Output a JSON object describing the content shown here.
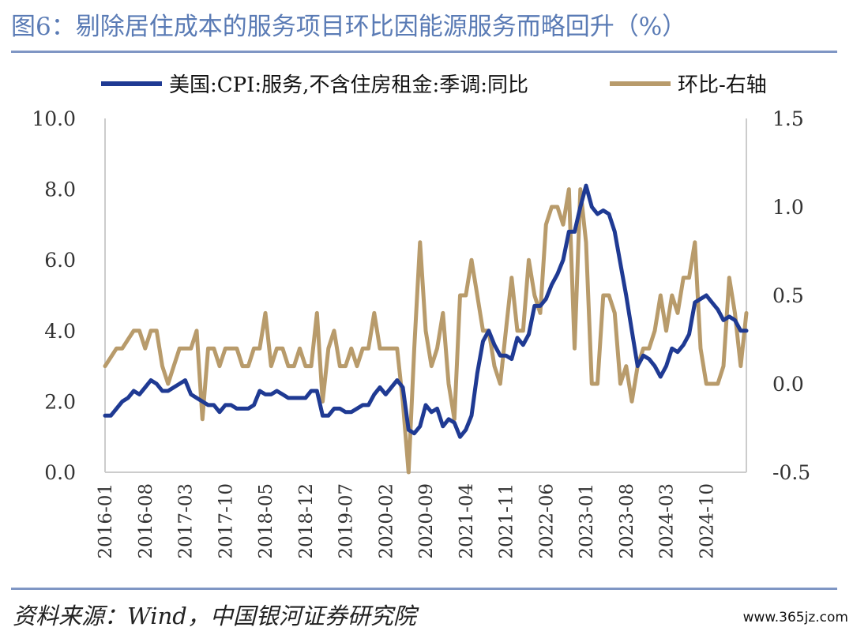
{
  "title": "图6：剔除居住成本的服务项目环比因能源服务而略回升（%）",
  "source": "资料来源：Wind，中国银河证券研究院",
  "watermark": "www.365jz.com",
  "chart_data": {
    "type": "line",
    "left_axis": {
      "ylim": [
        0,
        10
      ],
      "ticks": [
        "0.0",
        "2.0",
        "4.0",
        "6.0",
        "8.0",
        "10.0"
      ]
    },
    "right_axis": {
      "ylim": [
        -0.5,
        1.5
      ],
      "ticks": [
        "-0.5",
        "0.0",
        "0.5",
        "1.0",
        "1.5"
      ]
    },
    "x_ticks": [
      "2016-01",
      "2016-08",
      "2017-03",
      "2017-10",
      "2018-05",
      "2018-12",
      "2019-07",
      "2020-02",
      "2020-09",
      "2021-04",
      "2021-11",
      "2022-06",
      "2023-01",
      "2023-08",
      "2024-03",
      "2024-10"
    ],
    "legend_position": "top",
    "grid": false,
    "colors": {
      "yoy": "#1f3a93",
      "mom": "#b89b6b",
      "axis": "#cccccc"
    },
    "series": [
      {
        "name": "美国:CPI:服务,不含住房租金:季调:同比",
        "axis": "left",
        "start": "2016-01",
        "values": [
          1.6,
          1.6,
          1.8,
          2.0,
          2.1,
          2.3,
          2.2,
          2.4,
          2.6,
          2.5,
          2.3,
          2.3,
          2.4,
          2.5,
          2.6,
          2.2,
          2.1,
          2.0,
          1.9,
          1.9,
          1.7,
          1.9,
          1.9,
          1.8,
          1.8,
          1.8,
          1.9,
          2.3,
          2.2,
          2.2,
          2.3,
          2.2,
          2.1,
          2.1,
          2.1,
          2.1,
          2.3,
          2.3,
          1.6,
          1.6,
          1.8,
          1.8,
          1.7,
          1.7,
          1.8,
          1.9,
          1.9,
          2.2,
          2.4,
          2.2,
          2.4,
          2.6,
          2.4,
          1.2,
          1.1,
          1.3,
          1.9,
          1.7,
          1.8,
          1.3,
          1.5,
          1.4,
          1.0,
          1.2,
          1.6,
          2.8,
          3.7,
          4.0,
          3.6,
          3.3,
          3.3,
          3.2,
          3.8,
          3.6,
          3.9,
          4.7,
          4.7,
          4.9,
          5.3,
          5.6,
          6.0,
          6.8,
          6.8,
          7.5,
          8.1,
          7.5,
          7.3,
          7.4,
          7.3,
          6.8,
          5.9,
          5.0,
          4.0,
          3.0,
          3.3,
          3.2,
          3.0,
          2.7,
          3.0,
          3.5,
          3.4,
          3.6,
          3.9,
          4.8,
          4.9,
          5.0,
          4.8,
          4.6,
          4.3,
          4.4,
          4.3,
          4.0,
          4.0
        ]
      },
      {
        "name": "环比-右轴",
        "axis": "right",
        "start": "2016-01",
        "values": [
          0.1,
          0.15,
          0.2,
          0.2,
          0.25,
          0.3,
          0.3,
          0.2,
          0.3,
          0.3,
          0.1,
          0.0,
          0.1,
          0.2,
          0.2,
          0.2,
          0.3,
          -0.2,
          0.2,
          0.2,
          0.1,
          0.2,
          0.2,
          0.2,
          0.1,
          0.1,
          0.2,
          0.2,
          0.4,
          0.1,
          0.2,
          0.2,
          0.1,
          0.1,
          0.2,
          0.1,
          0.1,
          0.4,
          -0.1,
          0.2,
          0.3,
          0.1,
          0.1,
          0.2,
          0.1,
          0.2,
          0.2,
          0.4,
          0.2,
          0.2,
          0.2,
          0.2,
          -0.1,
          -0.5,
          0.2,
          0.8,
          0.3,
          0.1,
          0.2,
          0.4,
          0.0,
          -0.2,
          0.5,
          0.5,
          0.7,
          0.5,
          0.3,
          0.3,
          0.1,
          0.0,
          0.3,
          0.6,
          0.3,
          0.3,
          0.7,
          0.5,
          0.4,
          0.9,
          1.0,
          1.0,
          0.9,
          1.1,
          0.2,
          1.1,
          0.8,
          0.0,
          0.0,
          0.5,
          0.5,
          0.4,
          0.0,
          0.1,
          -0.1,
          0.1,
          0.2,
          0.2,
          0.3,
          0.5,
          0.3,
          0.5,
          0.4,
          0.6,
          0.6,
          0.8,
          0.2,
          0.0,
          0.0,
          0.0,
          0.1,
          0.6,
          0.4,
          0.1,
          0.4
        ]
      }
    ]
  }
}
